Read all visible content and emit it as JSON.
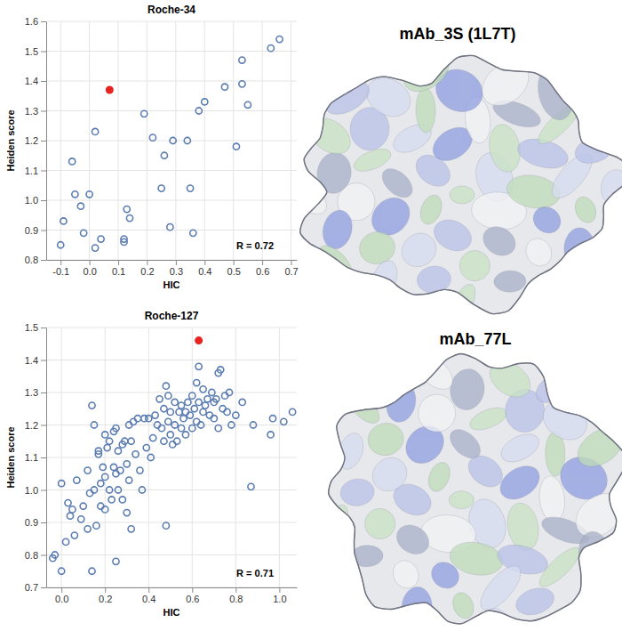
{
  "chart_data": [
    {
      "type": "scatter",
      "title": "Roche-34",
      "x_label": "HIC",
      "y_label": "Heiden score",
      "annotation": "R = 0.72",
      "grid": true,
      "xlim": [
        -0.15,
        0.72
      ],
      "xticks": [
        -0.1,
        {
          "value": 0,
          "label": "0.0"
        },
        0.1,
        0.2,
        0.3,
        0.4,
        0.5,
        0.6,
        0.7
      ],
      "ylim": [
        0.8,
        1.6
      ],
      "yticks": [
        0.8,
        0.9,
        {
          "value": 1,
          "label": "1.0"
        },
        1.1,
        1.2,
        1.3,
        1.4,
        1.5,
        1.6
      ],
      "series": [
        {
          "color": "#5b7db1",
          "marker": "circle-open",
          "x": [
            -0.1,
            -0.09,
            -0.06,
            -0.05,
            -0.03,
            -0.02,
            0.0,
            0.02,
            0.02,
            0.04,
            0.12,
            0.12,
            0.13,
            0.14,
            0.19,
            0.22,
            0.25,
            0.26,
            0.28,
            0.29,
            0.34,
            0.35,
            0.36,
            0.38,
            0.4,
            0.47,
            0.51,
            0.53,
            0.53,
            0.55,
            0.63,
            0.66
          ],
          "values": [
            0.85,
            0.93,
            1.13,
            1.02,
            0.98,
            0.89,
            1.02,
            0.84,
            1.23,
            0.87,
            0.86,
            0.87,
            0.97,
            0.94,
            1.29,
            1.21,
            1.04,
            1.15,
            0.91,
            1.2,
            1.2,
            1.04,
            0.89,
            1.3,
            1.33,
            1.38,
            1.18,
            1.39,
            1.47,
            1.32,
            1.51,
            1.54
          ]
        },
        {
          "color": "#e8221f",
          "marker": "circle",
          "x": [
            0.07
          ],
          "values": [
            1.37
          ]
        }
      ]
    },
    {
      "type": "scatter",
      "title": "Roche-127",
      "x_label": "HIC",
      "y_label": "Heiden score",
      "annotation": "R = 0.71",
      "grid": true,
      "xlim": [
        -0.07,
        1.08
      ],
      "xticks": [
        {
          "value": 0,
          "label": "0.0"
        },
        0.2,
        0.4,
        0.6,
        0.8,
        {
          "value": 1,
          "label": "1.0"
        }
      ],
      "ylim": [
        0.7,
        1.5
      ],
      "yticks": [
        0.7,
        0.8,
        0.9,
        {
          "value": 1,
          "label": "1.0"
        },
        1.1,
        1.2,
        1.3,
        1.4,
        1.5
      ],
      "series": [
        {
          "color": "#5b7db1",
          "marker": "circle-open",
          "x": [
            -0.04,
            -0.03,
            0.0,
            0.0,
            0.02,
            0.03,
            0.04,
            0.05,
            0.06,
            0.07,
            0.09,
            0.1,
            0.12,
            0.12,
            0.13,
            0.14,
            0.14,
            0.15,
            0.15,
            0.16,
            0.17,
            0.17,
            0.18,
            0.18,
            0.19,
            0.2,
            0.2,
            0.2,
            0.21,
            0.22,
            0.22,
            0.23,
            0.24,
            0.24,
            0.25,
            0.25,
            0.25,
            0.26,
            0.26,
            0.27,
            0.28,
            0.28,
            0.29,
            0.3,
            0.3,
            0.31,
            0.31,
            0.32,
            0.32,
            0.33,
            0.34,
            0.35,
            0.36,
            0.37,
            0.38,
            0.39,
            0.4,
            0.41,
            0.42,
            0.43,
            0.44,
            0.45,
            0.46,
            0.47,
            0.47,
            0.48,
            0.48,
            0.49,
            0.49,
            0.5,
            0.5,
            0.51,
            0.52,
            0.52,
            0.53,
            0.54,
            0.55,
            0.55,
            0.56,
            0.57,
            0.57,
            0.58,
            0.59,
            0.6,
            0.6,
            0.61,
            0.62,
            0.62,
            0.63,
            0.63,
            0.64,
            0.65,
            0.65,
            0.66,
            0.67,
            0.68,
            0.69,
            0.7,
            0.7,
            0.71,
            0.72,
            0.72,
            0.73,
            0.74,
            0.75,
            0.76,
            0.77,
            0.78,
            0.8,
            0.83,
            0.87,
            0.88,
            0.96,
            0.97,
            1.02,
            1.06
          ],
          "values": [
            0.79,
            0.8,
            0.75,
            1.02,
            0.84,
            0.96,
            0.92,
            0.94,
            0.86,
            1.03,
            0.91,
            0.95,
            0.88,
            1.06,
            0.99,
            0.75,
            1.26,
            1.2,
            1.0,
            0.89,
            1.11,
            1.12,
            0.95,
            1.02,
            1.07,
            1.17,
            0.94,
            1.04,
            1.13,
            1.0,
            1.15,
            0.97,
            1.18,
            1.07,
            1.19,
            0.78,
            1.05,
            1.12,
            1.0,
            1.06,
            1.14,
            0.97,
            1.15,
            0.93,
            1.08,
            1.2,
            1.03,
            0.88,
            1.15,
            1.21,
            1.11,
            1.22,
            1.06,
            1.0,
            1.22,
            1.13,
            1.22,
            1.1,
            1.16,
            1.23,
            1.2,
            1.28,
            1.19,
            1.25,
            1.15,
            1.32,
            0.89,
            1.21,
            1.29,
            1.17,
            1.24,
            1.14,
            1.27,
            1.2,
            1.15,
            1.24,
            1.26,
            1.19,
            1.22,
            1.24,
            1.17,
            1.27,
            1.23,
            1.19,
            1.29,
            1.25,
            1.33,
            1.21,
            1.38,
            1.27,
            1.2,
            1.24,
            1.31,
            1.26,
            1.28,
            1.23,
            1.3,
            1.27,
            1.22,
            1.28,
            1.36,
            1.19,
            1.37,
            1.25,
            1.29,
            1.24,
            1.3,
            1.2,
            1.23,
            1.27,
            1.01,
            1.2,
            1.17,
            1.22,
            1.21,
            1.24
          ]
        },
        {
          "color": "#e8221f",
          "marker": "circle",
          "x": [
            0.63
          ],
          "values": [
            1.46
          ]
        }
      ]
    }
  ],
  "images": [
    {
      "title": "mAb_3S (1L7T)"
    },
    {
      "title": "mAb_77L"
    }
  ]
}
